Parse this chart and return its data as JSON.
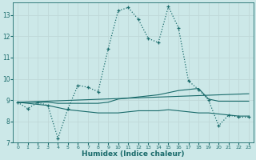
{
  "xlabel": "Humidex (Indice chaleur)",
  "background_color": "#cce8e8",
  "grid_color": "#c0d8d8",
  "line_color": "#1a6b6b",
  "xlim": [
    -0.5,
    23.5
  ],
  "ylim": [
    7,
    13.6
  ],
  "yticks": [
    7,
    8,
    9,
    10,
    11,
    12,
    13
  ],
  "xticks": [
    0,
    1,
    2,
    3,
    4,
    5,
    6,
    7,
    8,
    9,
    10,
    11,
    12,
    13,
    14,
    15,
    16,
    17,
    18,
    19,
    20,
    21,
    22,
    23
  ],
  "series1_x": [
    0,
    1,
    2,
    3,
    4,
    5,
    6,
    7,
    8,
    9,
    10,
    11,
    12,
    13,
    14,
    15,
    16,
    17,
    18,
    19,
    20,
    21,
    22,
    23
  ],
  "series1_y": [
    8.9,
    8.6,
    8.9,
    8.75,
    7.2,
    8.6,
    9.7,
    9.6,
    9.4,
    11.4,
    13.2,
    13.35,
    12.8,
    11.9,
    11.7,
    13.4,
    12.4,
    9.9,
    9.5,
    9.0,
    7.8,
    8.3,
    8.2,
    8.2
  ],
  "series2_x": [
    0,
    1,
    2,
    3,
    4,
    5,
    6,
    7,
    8,
    9,
    10,
    11,
    12,
    13,
    14,
    15,
    16,
    17,
    18,
    19,
    20,
    21,
    22,
    23
  ],
  "series2_y": [
    8.9,
    8.9,
    8.9,
    8.9,
    8.85,
    8.85,
    8.85,
    8.85,
    8.85,
    8.9,
    9.05,
    9.1,
    9.15,
    9.2,
    9.25,
    9.35,
    9.45,
    9.5,
    9.55,
    9.05,
    8.95,
    8.95,
    8.95,
    8.95
  ],
  "series3_x": [
    0,
    1,
    2,
    3,
    4,
    5,
    6,
    7,
    8,
    9,
    10,
    11,
    12,
    13,
    14,
    15,
    16,
    17,
    18,
    19,
    20,
    21,
    22,
    23
  ],
  "series3_y": [
    8.9,
    8.85,
    8.8,
    8.75,
    8.65,
    8.55,
    8.5,
    8.45,
    8.4,
    8.4,
    8.4,
    8.45,
    8.5,
    8.5,
    8.5,
    8.55,
    8.5,
    8.45,
    8.4,
    8.4,
    8.35,
    8.3,
    8.25,
    8.25
  ],
  "series4_x": [
    0,
    23
  ],
  "series4_y": [
    8.9,
    9.3
  ]
}
